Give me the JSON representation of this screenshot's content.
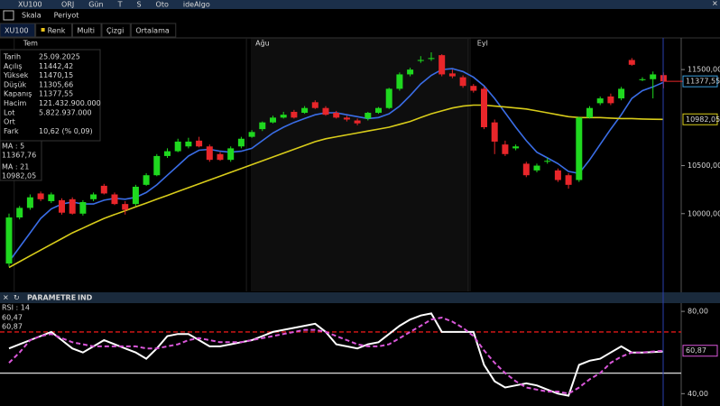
{
  "toolbar": {
    "symbol": "XU100",
    "items": [
      "ORJ",
      "Gün",
      "T",
      "S",
      "Oto",
      "ideAlgo"
    ]
  },
  "menu": [
    "Skala",
    "Periyot"
  ],
  "tabs": [
    "XU100",
    "Renk",
    "Multi",
    "Çizgi",
    "Ortalama"
  ],
  "info": {
    "rows": [
      [
        "Tarih",
        "25.09.2025"
      ],
      [
        "Açılış",
        "11442,42"
      ],
      [
        "Yüksek",
        "11470,15"
      ],
      [
        "Düşük",
        "11305,66"
      ],
      [
        "Kapanış",
        "11377,55"
      ],
      [
        "Hacim",
        "121.432.900.000"
      ],
      [
        "Lot",
        "5.822.937.000"
      ],
      [
        "Ort",
        null
      ],
      [
        "Fark",
        "10,62 (% 0,09)"
      ]
    ]
  },
  "indicator_bar": {
    "title": "PARAMETRE",
    "subtitle": "IND"
  },
  "chart_data": [
    {
      "type": "candlestick",
      "categories": [
        null,
        "Tem",
        null,
        null,
        null,
        null,
        null,
        null,
        null,
        null,
        null,
        null,
        null,
        null,
        null,
        null,
        null,
        null,
        null,
        null,
        null,
        null,
        null,
        "Ağu",
        null,
        null,
        null,
        null,
        null,
        null,
        null,
        null,
        null,
        null,
        null,
        null,
        null,
        null,
        null,
        null,
        null,
        null,
        null,
        null,
        "Eyl",
        null,
        null,
        null,
        null,
        null,
        null,
        null,
        null,
        null,
        null,
        null,
        null,
        null,
        null,
        null,
        null,
        null,
        null
      ],
      "ohlc": [
        [
          9480,
          10000,
          9450,
          9960
        ],
        [
          9960,
          10080,
          9940,
          10060
        ],
        [
          10060,
          10200,
          10040,
          10170
        ],
        [
          10210,
          10230,
          10130,
          10150
        ],
        [
          10130,
          10220,
          10110,
          10200
        ],
        [
          10140,
          10160,
          9990,
          10010
        ],
        [
          10150,
          10170,
          9990,
          10000
        ],
        [
          10000,
          10140,
          9980,
          10120
        ],
        [
          10150,
          10220,
          10130,
          10200
        ],
        [
          10290,
          10310,
          10200,
          10210
        ],
        [
          10200,
          10220,
          10090,
          10100
        ],
        [
          10100,
          10130,
          9990,
          10040
        ],
        [
          10100,
          10300,
          10080,
          10280
        ],
        [
          10300,
          10420,
          10290,
          10400
        ],
        [
          10400,
          10620,
          10390,
          10600
        ],
        [
          10600,
          10680,
          10580,
          10650
        ],
        [
          10650,
          10780,
          10640,
          10750
        ],
        [
          10700,
          10790,
          10680,
          10750
        ],
        [
          10760,
          10800,
          10690,
          10700
        ],
        [
          10700,
          10720,
          10540,
          10560
        ],
        [
          10620,
          10640,
          10550,
          10560
        ],
        [
          10560,
          10700,
          10540,
          10680
        ],
        [
          10700,
          10800,
          10680,
          10780
        ],
        [
          10800,
          10870,
          10790,
          10850
        ],
        [
          10880,
          10960,
          10860,
          10950
        ],
        [
          10950,
          11020,
          10940,
          11000
        ],
        [
          11000,
          11060,
          10990,
          11030
        ],
        [
          11060,
          11080,
          10990,
          11000
        ],
        [
          11050,
          11120,
          11040,
          11100
        ],
        [
          11160,
          11180,
          11090,
          11100
        ],
        [
          11100,
          11120,
          11020,
          11030
        ],
        [
          11050,
          11070,
          10990,
          11000
        ],
        [
          11000,
          11020,
          10960,
          10980
        ],
        [
          10970,
          10990,
          10920,
          10940
        ],
        [
          10990,
          11060,
          10970,
          11050
        ],
        [
          11050,
          11110,
          11040,
          11100
        ],
        [
          11100,
          11310,
          11090,
          11300
        ],
        [
          11300,
          11470,
          11280,
          11450
        ],
        [
          11450,
          11520,
          11430,
          11500
        ],
        [
          11590,
          11640,
          11570,
          11600
        ],
        [
          11610,
          11680,
          11590,
          11620
        ],
        [
          11650,
          11660,
          11430,
          11450
        ],
        [
          11460,
          11500,
          11410,
          11430
        ],
        [
          11420,
          11440,
          11310,
          11330
        ],
        [
          11330,
          11350,
          11260,
          11280
        ],
        [
          11300,
          11320,
          10880,
          10900
        ],
        [
          10950,
          10980,
          10620,
          10750
        ],
        [
          10720,
          10760,
          10600,
          10620
        ],
        [
          10680,
          10720,
          10660,
          10700
        ],
        [
          10520,
          10540,
          10380,
          10400
        ],
        [
          10450,
          10520,
          10430,
          10500
        ],
        [
          10540,
          10580,
          10520,
          10550
        ],
        [
          10450,
          10470,
          10330,
          10350
        ],
        [
          10400,
          10420,
          10260,
          10300
        ],
        [
          10350,
          11010,
          10330,
          11000
        ],
        [
          11000,
          11120,
          10990,
          11100
        ],
        [
          11150,
          11220,
          11130,
          11200
        ],
        [
          11220,
          11250,
          11130,
          11150
        ],
        [
          11200,
          11320,
          11180,
          11300
        ],
        [
          11600,
          11620,
          11540,
          11550
        ],
        [
          11390,
          11420,
          11380,
          11400
        ],
        [
          11400,
          11480,
          11200,
          11450
        ],
        [
          11442.42,
          11470.15,
          11305.66,
          11377.55
        ]
      ],
      "up_color": "#1fd81f",
      "down_color": "#e8262a",
      "last_price_label": "11377,55",
      "last_price_color": "#e8262a",
      "series": [
        {
          "name": "MA : 5",
          "color": "#3a6de6",
          "last_value_label": "11367,76",
          "values": [
            9500,
            9650,
            9800,
            9950,
            10050,
            10100,
            10120,
            10100,
            10100,
            10140,
            10160,
            10150,
            10170,
            10220,
            10300,
            10400,
            10500,
            10600,
            10660,
            10670,
            10650,
            10640,
            10650,
            10680,
            10760,
            10840,
            10900,
            10950,
            10990,
            11030,
            11050,
            11050,
            11030,
            11010,
            10990,
            11000,
            11040,
            11120,
            11230,
            11350,
            11440,
            11500,
            11510,
            11480,
            11420,
            11330,
            11200,
            11050,
            10900,
            10760,
            10640,
            10580,
            10520,
            10440,
            10420,
            10560,
            10720,
            10880,
            11030,
            11200,
            11280,
            11320,
            11367.76
          ]
        },
        {
          "name": "MA : 21",
          "color": "#d8cc1a",
          "last_value_label": "10982,05",
          "values": [
            9440,
            9500,
            9560,
            9620,
            9680,
            9740,
            9800,
            9850,
            9900,
            9950,
            9990,
            10030,
            10070,
            10110,
            10150,
            10190,
            10230,
            10270,
            10310,
            10350,
            10390,
            10430,
            10470,
            10510,
            10550,
            10590,
            10630,
            10670,
            10710,
            10750,
            10780,
            10800,
            10820,
            10840,
            10860,
            10880,
            10900,
            10930,
            10960,
            11000,
            11040,
            11070,
            11100,
            11120,
            11130,
            11130,
            11120,
            11110,
            11100,
            11090,
            11070,
            11050,
            11030,
            11010,
            11000,
            11000,
            11000,
            10995,
            10990,
            10990,
            10985,
            10983,
            10982.05
          ]
        }
      ],
      "ylim": [
        9190,
        11830
      ],
      "yticks": [
        {
          "value": 11500,
          "label": "11500,00"
        },
        {
          "value": 10500,
          "label": "10500,00"
        },
        {
          "value": 10000,
          "label": "10000,00"
        }
      ]
    },
    {
      "type": "line",
      "series": [
        {
          "name": "RSI : 14",
          "color": "#ffffff",
          "last_value_label": "60,47",
          "values": [
            62,
            64,
            66,
            68,
            70,
            66,
            62,
            60,
            63,
            66,
            64,
            62,
            60,
            57,
            62,
            68,
            69,
            69,
            66,
            63,
            63,
            64,
            65,
            66,
            68,
            70,
            71,
            72,
            73,
            74,
            70,
            64,
            63,
            62,
            64,
            65,
            69,
            73,
            76,
            78,
            79,
            70,
            70,
            70,
            70,
            54,
            46,
            43,
            44,
            45,
            44,
            42,
            40,
            39,
            54,
            56,
            57,
            60,
            63,
            60,
            60,
            60.2,
            60.47
          ]
        },
        {
          "color": "#d957d9",
          "dashed": true,
          "last_value_label": "60,87",
          "values": [
            55,
            60,
            66,
            68,
            69,
            67,
            65,
            64,
            63,
            63,
            63,
            63,
            63,
            62,
            62,
            63,
            64,
            66,
            67,
            66,
            65,
            65,
            65,
            66,
            67,
            68,
            69,
            70,
            71,
            71,
            70,
            68,
            66,
            64,
            63,
            63,
            64,
            67,
            70,
            73,
            76,
            77,
            75,
            72,
            68,
            61,
            55,
            50,
            46,
            43,
            42,
            41,
            41,
            40,
            43,
            47,
            50,
            55,
            58,
            60,
            60,
            60.5,
            60.87
          ]
        }
      ],
      "hlines": [
        {
          "value": 70,
          "color": "#e01818",
          "dashed": true
        },
        {
          "value": 50,
          "color": "#d0d0d0"
        }
      ],
      "ylim": [
        34,
        84
      ],
      "yticks": [
        {
          "value": 80,
          "label": "80,00"
        },
        {
          "value": 40,
          "label": "40,00"
        }
      ]
    }
  ]
}
